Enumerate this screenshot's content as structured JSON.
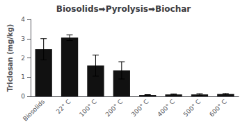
{
  "chart_data": {
    "type": "bar",
    "title": "Biosolids➡Pyrolysis➡Biochar",
    "ylabel": "Triclosan (mg/kg)",
    "categories": [
      "Biosolids",
      "22° C",
      "100° C",
      "200° C",
      "300° C",
      "400° C",
      "500° C",
      "600° C"
    ],
    "values": [
      2.45,
      3.05,
      1.6,
      1.35,
      0.07,
      0.1,
      0.1,
      0.12
    ],
    "errors": [
      0.55,
      0.15,
      0.55,
      0.45,
      0.02,
      0.02,
      0.04,
      0.03
    ],
    "color": "#111111",
    "ylim": [
      0,
      4
    ],
    "yticks": [
      0,
      1,
      2,
      3,
      4
    ],
    "grid": false
  }
}
